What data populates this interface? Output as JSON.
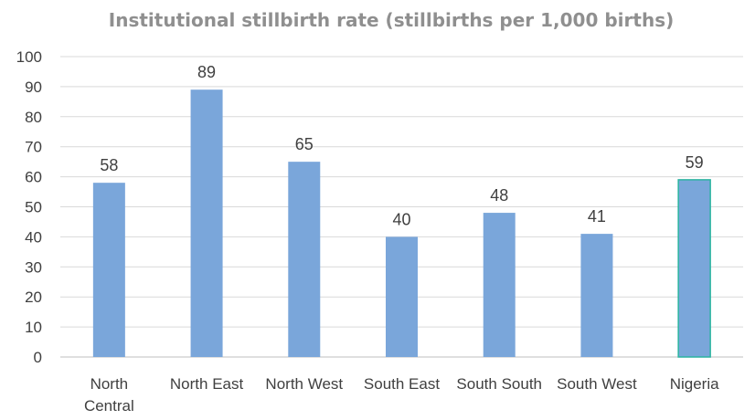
{
  "chart_data": {
    "type": "bar",
    "title": "Institutional stillbirth rate (stillbirths per 1,000 births)",
    "xlabel": "",
    "ylabel": "",
    "categories": [
      "North Central",
      "North East",
      "North West",
      "South East",
      "South South",
      "South West",
      "Nigeria"
    ],
    "category_lines": [
      [
        "North",
        "Central"
      ],
      [
        "North East"
      ],
      [
        "North West"
      ],
      [
        "South East"
      ],
      [
        "South South"
      ],
      [
        "South West"
      ],
      [
        "Nigeria"
      ]
    ],
    "values": [
      58,
      89,
      65,
      40,
      48,
      41,
      59
    ],
    "data_labels": [
      "58",
      "89",
      "65",
      "40",
      "48",
      "41",
      "59"
    ],
    "ylim": [
      0,
      100
    ],
    "yticks": [
      0,
      10,
      20,
      30,
      40,
      50,
      60,
      70,
      80,
      90,
      100
    ],
    "grid": true,
    "legend": "none",
    "colors": {
      "bar": "#7aa6da",
      "highlight_bar": "#7aa6da",
      "highlight_outline": "#2bb4a0",
      "title": "#8f8f8f",
      "text": "#404040",
      "grid": "#d9d9d9"
    },
    "highlight_index": 6
  }
}
